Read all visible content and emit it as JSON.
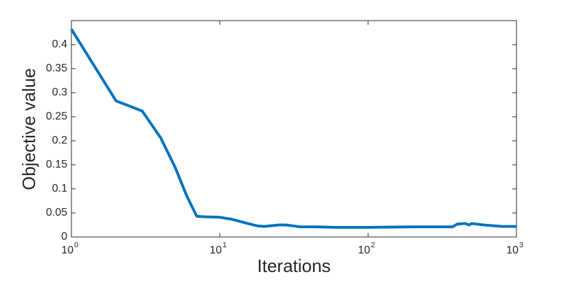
{
  "chart_data": {
    "type": "line",
    "xlabel": "Iterations",
    "ylabel": "Objective value",
    "xscale": "log",
    "xlim": [
      1,
      1000
    ],
    "xticks": [
      {
        "value": 1,
        "label": "10",
        "exponent": "0"
      },
      {
        "value": 10,
        "label": "10",
        "exponent": "1"
      },
      {
        "value": 100,
        "label": "10",
        "exponent": "2"
      },
      {
        "value": 1000,
        "label": "10",
        "exponent": "3"
      }
    ],
    "ylim": [
      0,
      0.45
    ],
    "yticks": [
      0,
      0.05,
      0.1,
      0.15,
      0.2,
      0.25,
      0.3,
      0.35,
      0.4
    ],
    "grid": false,
    "x": [
      1,
      2,
      3,
      4,
      5,
      6,
      7,
      8,
      10,
      12,
      15,
      18,
      20,
      25,
      28,
      35,
      45,
      60,
      100,
      200,
      370,
      400,
      450,
      480,
      500,
      600,
      800,
      1000
    ],
    "series": [
      {
        "color": "#0072bd",
        "values": [
          0.432,
          0.283,
          0.262,
          0.206,
          0.145,
          0.085,
          0.043,
          0.042,
          0.041,
          0.037,
          0.029,
          0.023,
          0.022,
          0.025,
          0.025,
          0.021,
          0.021,
          0.02,
          0.02,
          0.021,
          0.021,
          0.027,
          0.028,
          0.025,
          0.028,
          0.025,
          0.022,
          0.022
        ]
      }
    ]
  }
}
